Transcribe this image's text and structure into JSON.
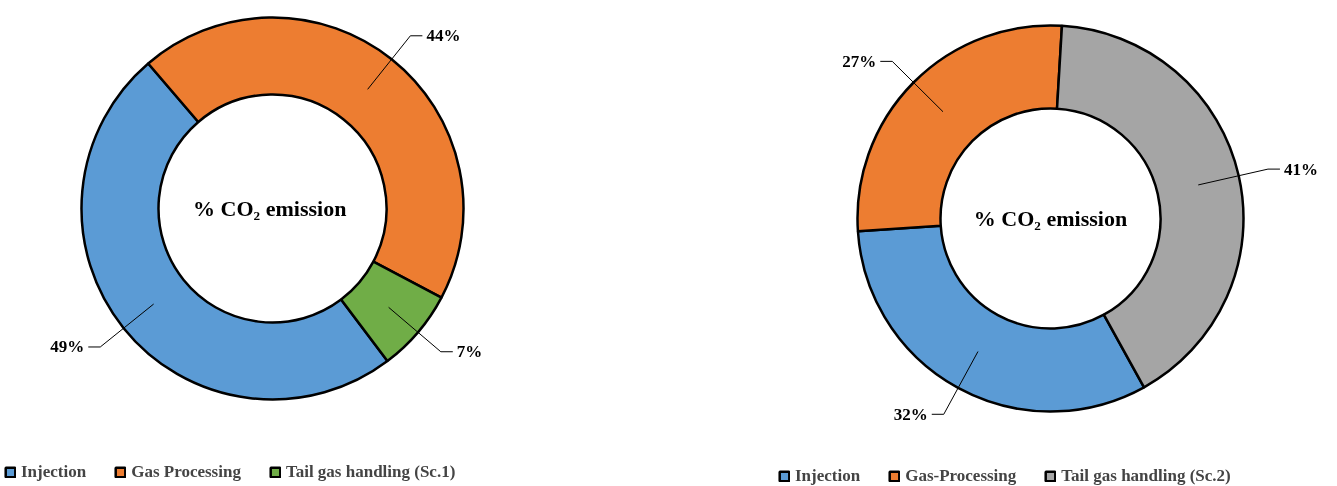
{
  "chart_data": [
    {
      "type": "donut",
      "title": "%  CO₂ emission",
      "categories": [
        "Injection",
        "Gas Processing",
        "Tail gas handling (Sc.1)"
      ],
      "values": [
        49,
        44,
        7
      ],
      "colors": [
        "#5b9bd5",
        "#ed7d31",
        "#70ad47"
      ],
      "value_labels": [
        "49%",
        "44%",
        "7%"
      ],
      "legend": "bottom"
    },
    {
      "type": "donut",
      "title": "% CO₂ emission",
      "categories": [
        "Injection",
        "Gas-Processing",
        "Tail gas handling (Sc.2)"
      ],
      "values": [
        32,
        27,
        41
      ],
      "colors": [
        "#5b9bd5",
        "#ed7d31",
        "#a5a5a5"
      ],
      "value_labels": [
        "32%",
        "27%",
        "41%"
      ],
      "legend": "bottom"
    }
  ]
}
